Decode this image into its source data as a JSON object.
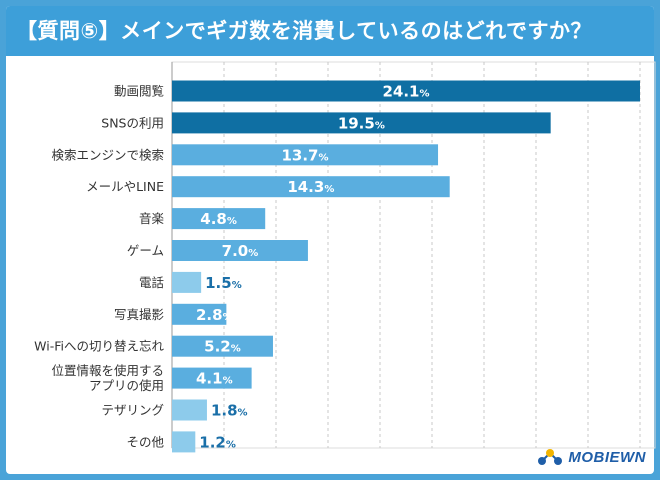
{
  "title": "【質問⑤】メインでギガ数を消費しているのはどれですか？",
  "logo": {
    "text": "MOBIEWN"
  },
  "colors": {
    "background": "#4aa3d8",
    "title_bg": "#3d9fd9",
    "tier_high": "#0f6fa3",
    "tier_mid": "#5aaedf",
    "tier_low": "#8dcbeb",
    "label_dark": "#1a6fa8"
  },
  "chart_data": {
    "type": "bar",
    "orientation": "horizontal",
    "title": "【質問⑤】メインでギガ数を消費しているのはどれですか？",
    "unit": "%",
    "xlim": [
      0,
      24.1
    ],
    "grid": "vertical-dashed",
    "categories": [
      "動画閲覧",
      "SNSの利用",
      "検索エンジンで検索",
      "メールやLINE",
      "音楽",
      "ゲーム",
      "電話",
      "写真撮影",
      "Wi-Fiへの切り替え忘れ",
      "位置情報を使用する アプリの使用",
      "テザリング",
      "その他"
    ],
    "values": [
      24.1,
      19.5,
      13.7,
      14.3,
      4.8,
      7.0,
      1.5,
      2.8,
      5.2,
      4.1,
      1.8,
      1.2
    ],
    "value_labels": [
      "24.1",
      "19.5",
      "13.7",
      "14.3",
      "4.8",
      "7.0",
      "1.5",
      "2.8",
      "5.2",
      "4.1",
      "1.8",
      "1.2"
    ]
  }
}
